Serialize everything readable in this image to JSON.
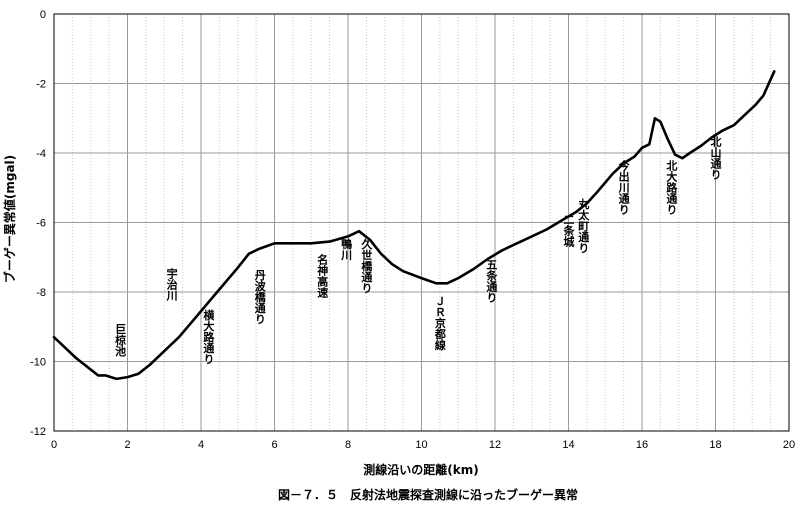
{
  "chart_data": {
    "type": "line",
    "xlabel": "測線沿いの距離(km)",
    "ylabel": "ブーゲー異常値(mgal)",
    "caption": "図－７．５　反射法地震探査測線に沿ったブーゲー異常",
    "xlim": [
      0,
      20
    ],
    "ylim": [
      -12,
      0
    ],
    "x_ticks": [
      0,
      2,
      4,
      6,
      8,
      10,
      12,
      14,
      16,
      18,
      20
    ],
    "y_ticks": [
      0,
      -2,
      -4,
      -6,
      -8,
      -10,
      -12
    ],
    "grid": {
      "x_major": true,
      "x_minor_dotted": true,
      "y_major": true
    },
    "series": [
      {
        "x": [
          0.0,
          0.3,
          0.6,
          0.9,
          1.2,
          1.4,
          1.7,
          2.0,
          2.3,
          2.6,
          3.0,
          3.4,
          3.8,
          4.2,
          4.6,
          5.0,
          5.3,
          5.6,
          6.0,
          6.5,
          7.0,
          7.5,
          8.0,
          8.3,
          8.6,
          8.9,
          9.2,
          9.5,
          10.0,
          10.4,
          10.7,
          11.0,
          11.4,
          11.8,
          12.2,
          12.6,
          13.0,
          13.4,
          13.8,
          14.2,
          14.5,
          14.8,
          15.0,
          15.2,
          15.5,
          15.8,
          16.0,
          16.2,
          16.35,
          16.5,
          16.7,
          16.9,
          17.1,
          17.3,
          17.6,
          17.9,
          18.2,
          18.5,
          18.8,
          19.1,
          19.3,
          19.6
        ],
        "y": [
          -9.3,
          -9.6,
          -9.9,
          -10.15,
          -10.4,
          -10.4,
          -10.5,
          -10.45,
          -10.35,
          -10.1,
          -9.7,
          -9.3,
          -8.8,
          -8.3,
          -7.8,
          -7.3,
          -6.9,
          -6.75,
          -6.6,
          -6.6,
          -6.6,
          -6.55,
          -6.4,
          -6.25,
          -6.5,
          -6.9,
          -7.2,
          -7.4,
          -7.6,
          -7.75,
          -7.75,
          -7.6,
          -7.35,
          -7.05,
          -6.8,
          -6.6,
          -6.4,
          -6.2,
          -5.95,
          -5.7,
          -5.45,
          -5.1,
          -4.85,
          -4.6,
          -4.3,
          -4.1,
          -3.85,
          -3.75,
          -3.0,
          -3.1,
          -3.6,
          -4.05,
          -4.15,
          -4.0,
          -3.8,
          -3.55,
          -3.35,
          -3.2,
          -2.9,
          -2.6,
          -2.35,
          -1.65
        ]
      }
    ],
    "annotations": [
      {
        "text": "巨椋池",
        "x": 1.8,
        "y": -8.9
      },
      {
        "text": "宇治川",
        "x": 3.2,
        "y": -7.3
      },
      {
        "text": "横大路通り",
        "x": 4.2,
        "y": -8.5
      },
      {
        "text": "丹波橋通り",
        "x": 5.6,
        "y": -7.35
      },
      {
        "text": "名神高速",
        "x": 7.3,
        "y": -6.9
      },
      {
        "text": "鴨川",
        "x": 7.95,
        "y": -6.45
      },
      {
        "text": "久世橋通り",
        "x": 8.5,
        "y": -6.45
      },
      {
        "text": "ＪＲ京都線",
        "x": 10.5,
        "y": -8.1
      },
      {
        "text": "五条通り",
        "x": 11.9,
        "y": -7.05
      },
      {
        "text": "二条城",
        "x": 14.0,
        "y": -5.75
      },
      {
        "text": "丸太町通り",
        "x": 14.4,
        "y": -5.3
      },
      {
        "text": "今出川通り",
        "x": 15.5,
        "y": -4.2
      },
      {
        "text": "北大路通り",
        "x": 16.8,
        "y": -4.2
      },
      {
        "text": "北山通り",
        "x": 18.0,
        "y": -3.5
      }
    ],
    "colors": {
      "line": "#000000",
      "grid": "#9a9a9a",
      "grid_minor": "#c8c8c8",
      "axis": "#000000"
    }
  }
}
